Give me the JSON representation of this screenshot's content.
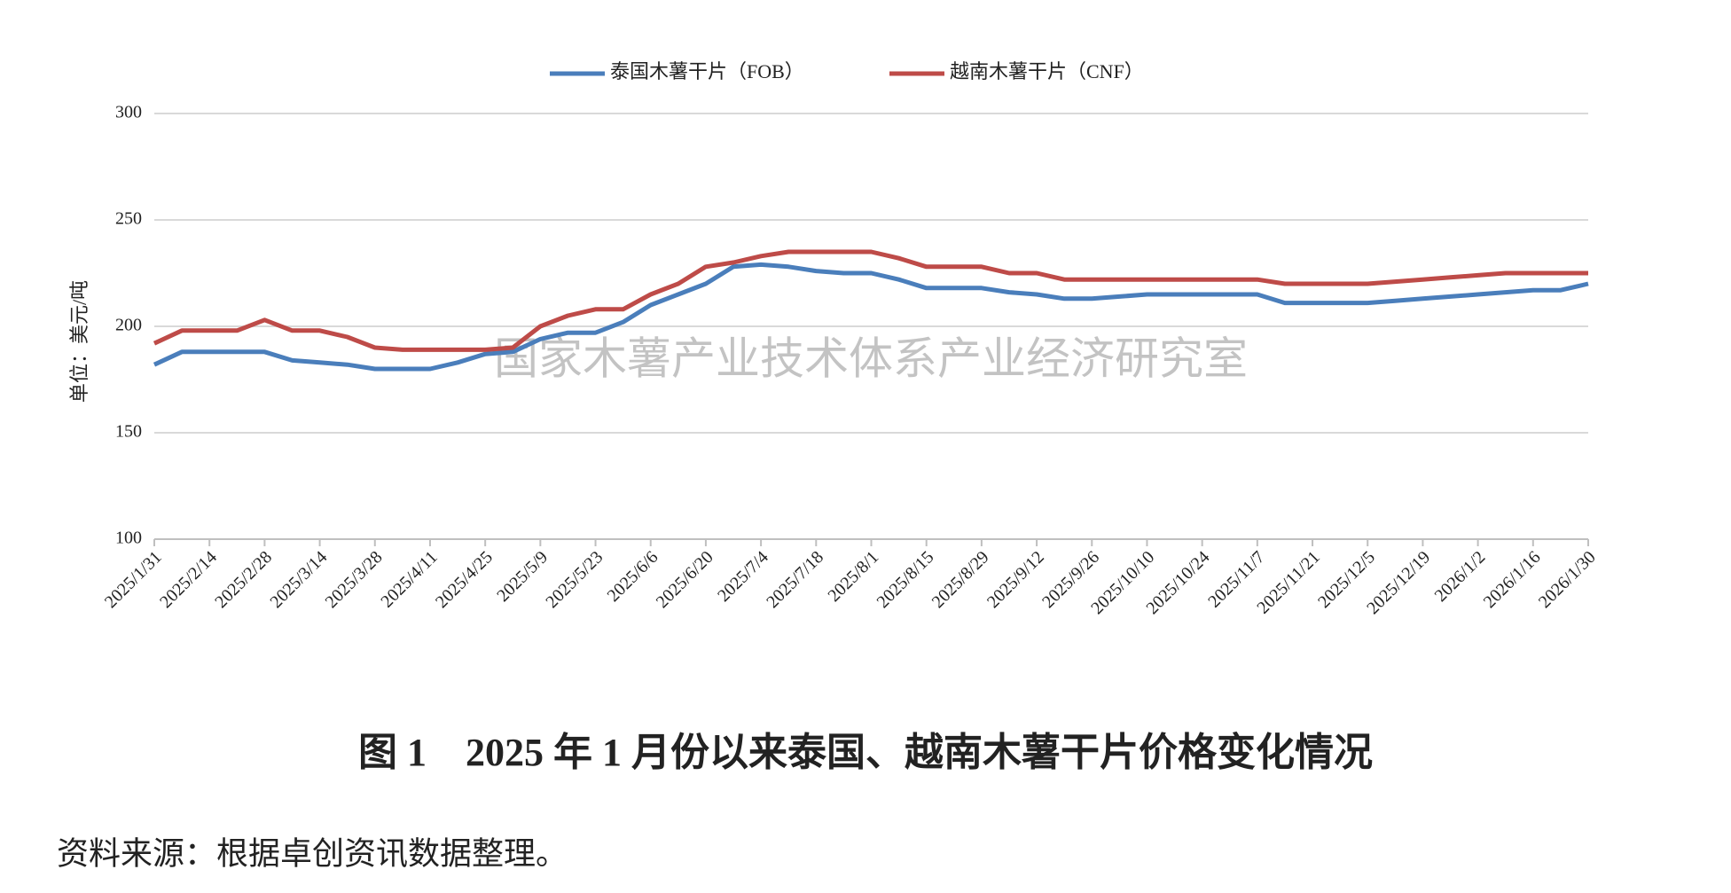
{
  "chart_data": {
    "type": "line",
    "watermark": "国家木薯产业技术体系产业经济研究室",
    "y_label": "单位：美元/吨",
    "categories": [
      "2025/1/31",
      null,
      "2025/2/14",
      null,
      "2025/2/28",
      null,
      "2025/3/14",
      null,
      "2025/3/28",
      null,
      "2025/4/11",
      null,
      "2025/4/25",
      null,
      "2025/5/9",
      null,
      "2025/5/23",
      null,
      "2025/6/6",
      null,
      "2025/6/20",
      null,
      "2025/7/4",
      null,
      "2025/7/18",
      null,
      "2025/8/1",
      null,
      "2025/8/15",
      null,
      "2025/8/29",
      null,
      "2025/9/12",
      null,
      "2025/9/26",
      null,
      "2025/10/10",
      null,
      "2025/10/24",
      null,
      "2025/11/7",
      null,
      "2025/11/21",
      null,
      "2025/12/5",
      null,
      "2025/12/19",
      null,
      "2026/1/2",
      null,
      "2026/1/16",
      null,
      "2026/1/30"
    ],
    "series": [
      {
        "name": "泰国木薯干片（FOB）",
        "color": "#4a7ebb",
        "values": [
          182,
          188,
          188,
          188,
          188,
          184,
          183,
          182,
          180,
          180,
          180,
          183,
          187,
          188,
          194,
          197,
          197,
          202,
          210,
          215,
          220,
          228,
          229,
          228,
          226,
          225,
          225,
          222,
          218,
          218,
          218,
          216,
          215,
          213,
          213,
          214,
          215,
          215,
          215,
          215,
          215,
          211,
          211,
          211,
          211,
          212,
          213,
          214,
          215,
          216,
          217,
          217,
          220
        ]
      },
      {
        "name": "越南木薯干片（CNF）",
        "color": "#be4b48",
        "values": [
          192,
          198,
          198,
          198,
          203,
          198,
          198,
          195,
          190,
          189,
          189,
          189,
          189,
          190,
          200,
          205,
          208,
          208,
          215,
          220,
          228,
          230,
          233,
          235,
          235,
          235,
          235,
          232,
          228,
          228,
          228,
          225,
          225,
          222,
          222,
          222,
          222,
          222,
          222,
          222,
          222,
          220,
          220,
          220,
          220,
          221,
          222,
          223,
          224,
          225,
          225,
          225,
          225
        ]
      }
    ],
    "ylim": [
      100,
      300
    ],
    "yticks": [
      100,
      150,
      200,
      250,
      300
    ],
    "grid": true,
    "legend": "top"
  },
  "caption": "图 1　2025 年 1 月份以来泰国、越南木薯干片价格变化情况",
  "source": "资料来源：根据卓创资讯数据整理。"
}
